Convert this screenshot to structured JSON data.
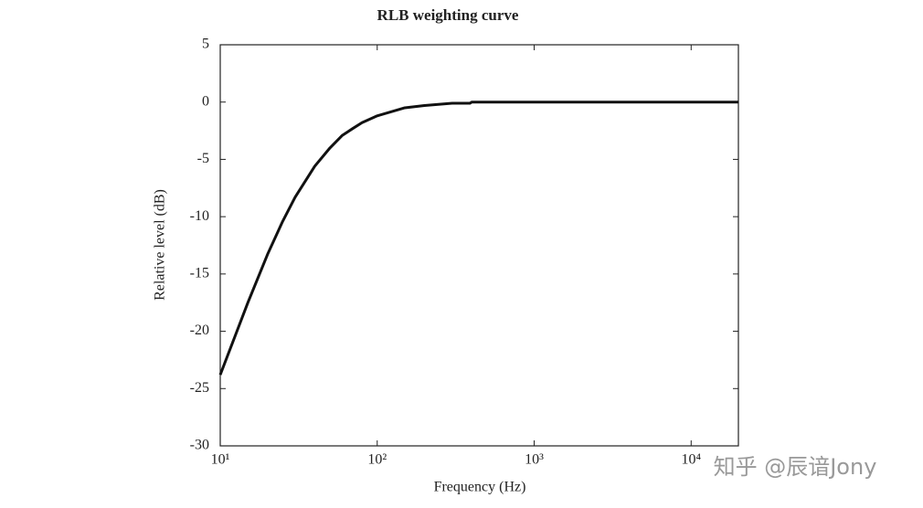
{
  "chart_data": {
    "type": "line",
    "title": "RLB weighting curve",
    "x_label": "Frequency (Hz)",
    "y_label": "Relative level (dB)",
    "x_scale": "log",
    "x": [
      10,
      15,
      20,
      25,
      30,
      40,
      50,
      60,
      70,
      80,
      100,
      150,
      200,
      300,
      390,
      400,
      1000,
      10000,
      20000
    ],
    "series": [
      {
        "name": "RLB",
        "color": "#111111",
        "values": [
          -23.8,
          -17.5,
          -13.3,
          -10.4,
          -8.3,
          -5.6,
          -4.0,
          -2.9,
          -2.3,
          -1.8,
          -1.2,
          -0.5,
          -0.3,
          -0.1,
          -0.1,
          0,
          0,
          0,
          0
        ]
      }
    ],
    "xlim": [
      10,
      20000
    ],
    "xticks": [
      {
        "value": 10,
        "label": "10¹"
      },
      {
        "value": 100,
        "label": "10²"
      },
      {
        "value": 1000,
        "label": "10³"
      },
      {
        "value": 10000,
        "label": "10⁴"
      }
    ],
    "ylim": [
      -30,
      5
    ],
    "yticks": [
      -30,
      -25,
      -20,
      -15,
      -10,
      -5,
      0,
      5
    ],
    "grid": false
  },
  "watermark": "知乎 @辰谙Jony"
}
